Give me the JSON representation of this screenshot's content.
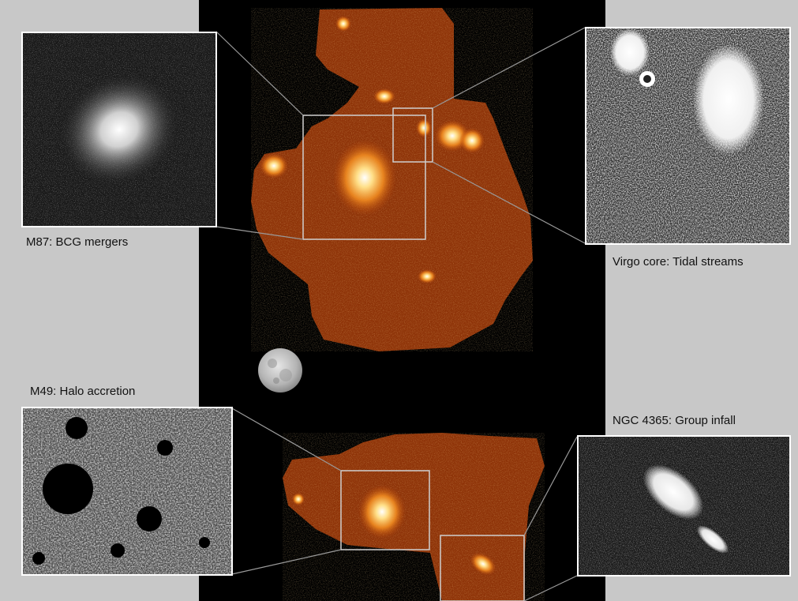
{
  "insets": {
    "m87": {
      "caption": "M87: BCG mergers"
    },
    "virgo_core": {
      "caption": "Virgo core: Tidal streams"
    },
    "m49": {
      "caption": "M49: Halo accretion"
    },
    "ngc4365": {
      "caption": "NGC 4365: Group infall"
    }
  },
  "colors": {
    "background": "#c8c8c8",
    "sky": "#000000",
    "mosaic_orange": "#b5440a",
    "frame": "#ffffff",
    "connector": "#9a9a9a"
  }
}
